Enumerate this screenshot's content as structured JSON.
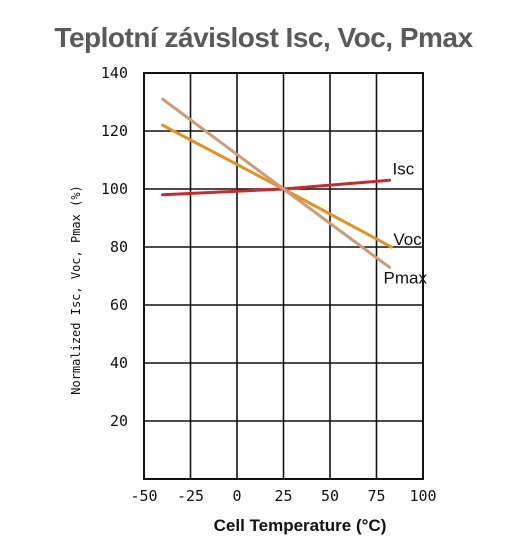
{
  "title": "Teplotní závislost Isc, Voc, Pmax",
  "chart_data": {
    "type": "line",
    "title": "Teplotní závislost Isc, Voc, Pmax",
    "xlabel": "Cell Temperature (°C)",
    "ylabel": "Normalized Isc, Voc, Pmax (%)",
    "xlim": [
      -50,
      100
    ],
    "ylim": [
      0,
      140
    ],
    "xticks": [
      -50,
      -25,
      0,
      25,
      50,
      75,
      100
    ],
    "yticks": [
      20,
      40,
      60,
      80,
      100,
      120,
      140
    ],
    "xtick_labels": [
      "-50",
      "-25",
      "0",
      "25",
      "50",
      "75",
      "100"
    ],
    "ytick_labels": [
      "20",
      "40",
      "60",
      "80",
      "100",
      "120",
      "140"
    ],
    "grid": true,
    "series": [
      {
        "name": "Isc",
        "color": "#cc2a2a",
        "x": [
          -40,
          25,
          82
        ],
        "y": [
          98,
          100,
          103
        ]
      },
      {
        "name": "Voc",
        "color": "#e8901f",
        "x": [
          -40,
          25,
          83
        ],
        "y": [
          122,
          100,
          80
        ]
      },
      {
        "name": "Pmax",
        "color": "#cf9b74",
        "x": [
          -40,
          25,
          82
        ],
        "y": [
          131,
          100,
          73
        ]
      }
    ]
  }
}
